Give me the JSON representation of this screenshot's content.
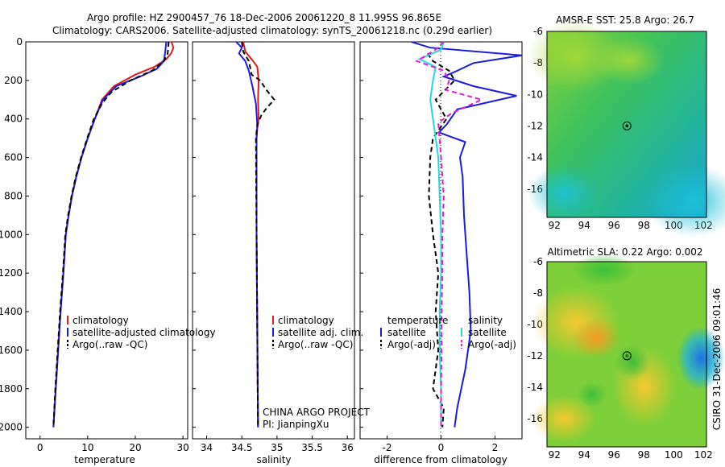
{
  "title_line1": "Argo profile: HZ 2900457_76 18-Dec-2006 20061220_8 11.995S 96.865E",
  "title_line2": "Climatology: CARS2006. Satellite-adjusted climatology: synTS_20061218.nc (0.29d earlier)",
  "side_label": "CSIRO 31-Dec-2006 09:01:46",
  "credit1": "CHINA ARGO PROJECT",
  "credit2": "PI: JianpingXu",
  "colors": {
    "climatology": "#e01b1b",
    "satellite": "#1b1be0",
    "argo": "#000000",
    "sat_diff": "#27d6e0",
    "argo_adj": "#e01bd6"
  },
  "chart_data": [
    {
      "id": "temperature",
      "type": "line",
      "xlabel": "temperature",
      "xlim": [
        -3,
        31
      ],
      "ylim": [
        0,
        2060
      ],
      "xticks": [
        0,
        10,
        20,
        30
      ],
      "yticks": [
        0,
        200,
        400,
        600,
        800,
        1000,
        1200,
        1400,
        1600,
        1800,
        2000
      ],
      "legend": [
        "climatology",
        "satellite-adjusted climatology",
        "Argo(..raw -QC)"
      ],
      "series": [
        {
          "name": "climatology",
          "color": "#e01b1b",
          "dash": "",
          "points": [
            [
              27.6,
              0
            ],
            [
              28,
              30
            ],
            [
              27.5,
              60
            ],
            [
              26.5,
              90
            ],
            [
              24,
              130
            ],
            [
              20,
              170
            ],
            [
              15.5,
              230
            ],
            [
              13,
              300
            ],
            [
              11.5,
              400
            ],
            [
              10,
              500
            ],
            [
              8.7,
              600
            ],
            [
              7.6,
              700
            ],
            [
              6.7,
              800
            ],
            [
              6,
              900
            ],
            [
              5.4,
              1000
            ],
            [
              4.9,
              1200
            ],
            [
              4.3,
              1400
            ],
            [
              3.8,
              1600
            ],
            [
              3.3,
              1800
            ],
            [
              2.8,
              2000
            ]
          ]
        },
        {
          "name": "satellite",
          "color": "#1b1be0",
          "dash": "",
          "points": [
            [
              26.5,
              0
            ],
            [
              26.3,
              50
            ],
            [
              26,
              100
            ],
            [
              24.5,
              140
            ],
            [
              21,
              180
            ],
            [
              16,
              230
            ],
            [
              13.2,
              300
            ],
            [
              11.5,
              400
            ],
            [
              10,
              500
            ],
            [
              8.7,
              600
            ],
            [
              7.6,
              700
            ],
            [
              6.7,
              800
            ],
            [
              6,
              900
            ],
            [
              5.4,
              1000
            ],
            [
              4.9,
              1200
            ],
            [
              4.3,
              1400
            ],
            [
              3.8,
              1600
            ],
            [
              3.3,
              1800
            ],
            [
              2.8,
              2000
            ]
          ]
        },
        {
          "name": "argo",
          "color": "#000000",
          "dash": "6,4",
          "points": [
            [
              27,
              0
            ],
            [
              26.8,
              60
            ],
            [
              26,
              100
            ],
            [
              23.5,
              150
            ],
            [
              19,
              200
            ],
            [
              15,
              260
            ],
            [
              13,
              320
            ],
            [
              11.3,
              400
            ],
            [
              9.9,
              500
            ],
            [
              8.6,
              600
            ],
            [
              7.5,
              700
            ],
            [
              6.6,
              800
            ],
            [
              5.9,
              900
            ],
            [
              5.3,
              1000
            ],
            [
              4.8,
              1200
            ],
            [
              4.2,
              1400
            ],
            [
              3.7,
              1600
            ],
            [
              3.2,
              1800
            ],
            [
              2.8,
              2000
            ]
          ]
        }
      ]
    },
    {
      "id": "salinity",
      "type": "line",
      "xlabel": "salinity",
      "xlim": [
        33.8,
        36.1
      ],
      "ylim": [
        0,
        2060
      ],
      "xticks": [
        34,
        34.5,
        35,
        35.5,
        36
      ],
      "xticklabels": [
        "34",
        "34.5",
        "35",
        "35.5",
        "36"
      ],
      "legend": [
        "climatology",
        "satellite adj. clim.",
        "Argo(..raw -QC)"
      ],
      "series": [
        {
          "name": "climatology",
          "color": "#e01b1b",
          "dash": "",
          "points": [
            [
              34.52,
              0
            ],
            [
              34.55,
              50
            ],
            [
              34.66,
              100
            ],
            [
              34.72,
              130
            ],
            [
              34.74,
              200
            ],
            [
              34.73,
              300
            ],
            [
              34.74,
              400
            ],
            [
              34.72,
              450
            ],
            [
              34.71,
              500
            ],
            [
              34.71,
              1000
            ],
            [
              34.72,
              1500
            ],
            [
              34.73,
              2000
            ]
          ]
        },
        {
          "name": "satellite",
          "color": "#1b1be0",
          "dash": "",
          "points": [
            [
              34.42,
              0
            ],
            [
              34.5,
              30
            ],
            [
              34.46,
              60
            ],
            [
              34.55,
              100
            ],
            [
              34.6,
              150
            ],
            [
              34.65,
              230
            ],
            [
              34.7,
              320
            ],
            [
              34.72,
              430
            ],
            [
              34.71,
              500
            ],
            [
              34.71,
              1000
            ],
            [
              34.72,
              1500
            ],
            [
              34.73,
              2000
            ]
          ]
        },
        {
          "name": "argo",
          "color": "#000000",
          "dash": "6,4",
          "points": [
            [
              34.5,
              0
            ],
            [
              34.52,
              50
            ],
            [
              34.6,
              100
            ],
            [
              34.64,
              170
            ],
            [
              34.76,
              200
            ],
            [
              34.85,
              250
            ],
            [
              34.96,
              300
            ],
            [
              34.86,
              340
            ],
            [
              34.78,
              380
            ],
            [
              34.72,
              430
            ],
            [
              34.7,
              500
            ],
            [
              34.71,
              1000
            ],
            [
              34.72,
              1500
            ],
            [
              34.73,
              2000
            ]
          ]
        }
      ]
    },
    {
      "id": "difference",
      "type": "line",
      "xlabel": "difference from climatology",
      "xlim": [
        -3,
        3
      ],
      "ylim": [
        0,
        2060
      ],
      "xticks": [
        -2,
        0,
        2
      ],
      "legend_temperature": [
        "temperature",
        "satellite",
        "Argo(-adj)"
      ],
      "legend_salinity": [
        "salinity",
        "satellite",
        "Argo(-adj)"
      ],
      "series": [
        {
          "name": "temperature satellite",
          "color": "#1b1be0",
          "dash": "",
          "points": [
            [
              -1.1,
              0
            ],
            [
              -0.4,
              30
            ],
            [
              3,
              70
            ],
            [
              1.2,
              110
            ],
            [
              0.6,
              150
            ],
            [
              0.1,
              180
            ],
            [
              1.2,
              230
            ],
            [
              2.8,
              280
            ],
            [
              0.6,
              350
            ],
            [
              0.2,
              430
            ],
            [
              -0.08,
              470
            ],
            [
              0.9,
              520
            ],
            [
              0.7,
              600
            ],
            [
              0.8,
              700
            ],
            [
              0.85,
              900
            ],
            [
              0.95,
              1100
            ],
            [
              1.05,
              1300
            ],
            [
              1.1,
              1500
            ],
            [
              0.9,
              1700
            ],
            [
              0.6,
              1900
            ],
            [
              0.5,
              2000
            ]
          ]
        },
        {
          "name": "temperature argo",
          "color": "#000000",
          "dash": "6,4",
          "points": [
            [
              -0.5,
              60
            ],
            [
              -0.3,
              100
            ],
            [
              0.3,
              150
            ],
            [
              0.5,
              200
            ],
            [
              -0.2,
              300
            ],
            [
              0.2,
              400
            ],
            [
              -0.3,
              500
            ],
            [
              -0.4,
              600
            ],
            [
              -0.45,
              800
            ],
            [
              -0.3,
              1000
            ],
            [
              -0.1,
              1200
            ],
            [
              -0.2,
              1400
            ],
            [
              -0.1,
              1600
            ],
            [
              -0.3,
              1800
            ],
            [
              0.1,
              1900
            ],
            [
              0.05,
              2000
            ]
          ]
        },
        {
          "name": "salinity satellite",
          "color": "#27d6e0",
          "dash": "",
          "points": [
            [
              0.1,
              0
            ],
            [
              0,
              40
            ],
            [
              -0.8,
              90
            ],
            [
              -0.2,
              130
            ],
            [
              -0.3,
              200
            ],
            [
              -0.4,
              300
            ],
            [
              -0.3,
              400
            ],
            [
              -0.1,
              600
            ],
            [
              -0.05,
              800
            ],
            [
              0,
              1000
            ],
            [
              0,
              1200
            ],
            [
              -0.05,
              1400
            ],
            [
              -0.05,
              1600
            ],
            [
              0,
              1800
            ],
            [
              0,
              2000
            ]
          ]
        },
        {
          "name": "salinity argo",
          "color": "#e01bd6",
          "dash": "6,4",
          "points": [
            [
              0.1,
              0
            ],
            [
              -0.2,
              40
            ],
            [
              -0.9,
              100
            ],
            [
              0.1,
              150
            ],
            [
              0.3,
              200
            ],
            [
              0.2,
              250
            ],
            [
              1.5,
              300
            ],
            [
              0.4,
              370
            ],
            [
              -0.1,
              420
            ],
            [
              0,
              600
            ],
            [
              0.1,
              800
            ],
            [
              0.05,
              1000
            ],
            [
              0.05,
              1200
            ],
            [
              0.02,
              1400
            ],
            [
              0.02,
              1600
            ],
            [
              0,
              1800
            ],
            [
              0,
              2000
            ]
          ]
        }
      ]
    },
    {
      "id": "sst_map",
      "type": "heatmap",
      "title": "AMSR-E SST: 25.8 Argo: 26.7",
      "xlim": [
        91.5,
        102.2
      ],
      "ylim": [
        -17.8,
        -6
      ],
      "xticks": [
        92,
        94,
        96,
        98,
        100,
        102
      ],
      "yticks": [
        -6,
        -8,
        -10,
        -12,
        -14,
        -16
      ],
      "marker": [
        96.865,
        -11.995
      ]
    },
    {
      "id": "sla_map",
      "type": "heatmap",
      "title": "Altimetric SLA: 0.22 Argo: 0.002",
      "xlim": [
        91.5,
        102.2
      ],
      "ylim": [
        -17.8,
        -6
      ],
      "xticks": [
        92,
        94,
        96,
        98,
        100,
        102
      ],
      "yticks": [
        -6,
        -8,
        -10,
        -12,
        -14,
        -16
      ],
      "marker": [
        96.865,
        -11.995
      ]
    }
  ]
}
